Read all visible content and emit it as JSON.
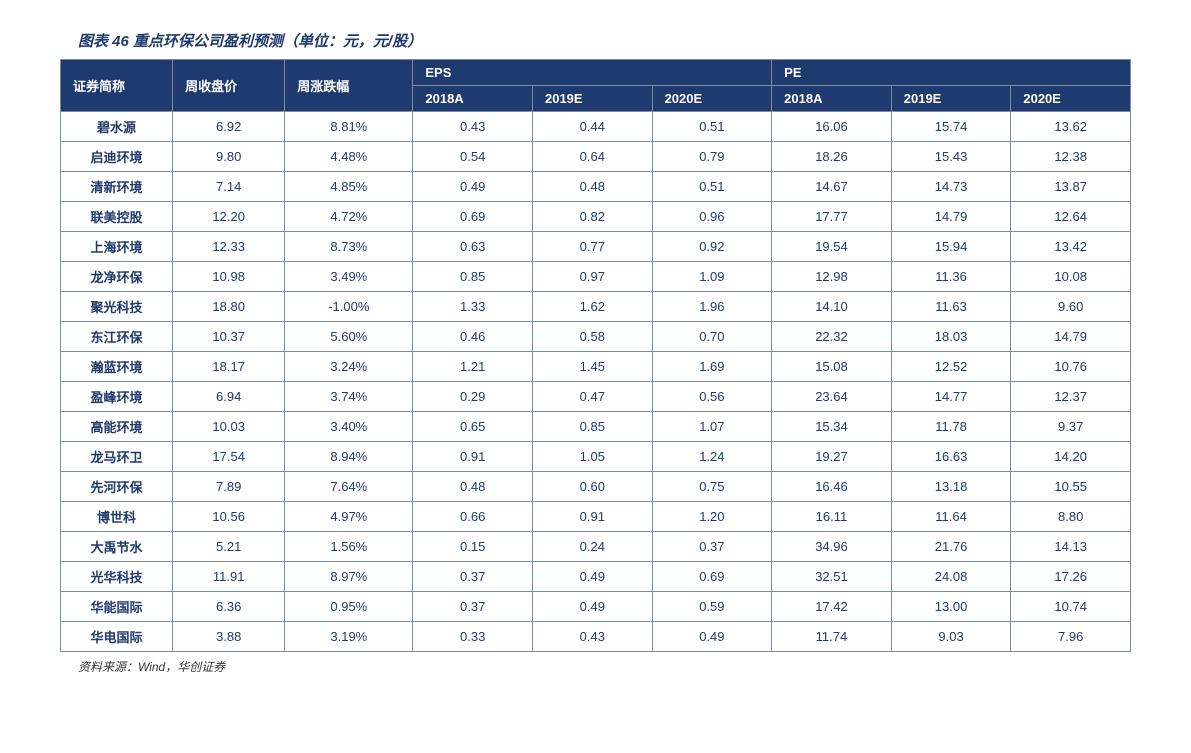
{
  "figure": {
    "caption": "图表 46  重点环保公司盈利预测（单位：元，元/股）",
    "source": "资料来源：Wind，华创证券"
  },
  "table": {
    "headers": {
      "stock_name": "证券简称",
      "close_price": "周收盘价",
      "change": "周涨跌幅",
      "eps_group": "EPS",
      "pe_group": "PE",
      "y2018a": "2018A",
      "y2019e": "2019E",
      "y2020e": "2020E"
    },
    "rows": [
      {
        "name": "碧水源",
        "price": "6.92",
        "change": "8.81%",
        "eps2018": "0.43",
        "eps2019": "0.44",
        "eps2020": "0.51",
        "pe2018": "16.06",
        "pe2019": "15.74",
        "pe2020": "13.62"
      },
      {
        "name": "启迪环境",
        "price": "9.80",
        "change": "4.48%",
        "eps2018": "0.54",
        "eps2019": "0.64",
        "eps2020": "0.79",
        "pe2018": "18.26",
        "pe2019": "15.43",
        "pe2020": "12.38"
      },
      {
        "name": "清新环境",
        "price": "7.14",
        "change": "4.85%",
        "eps2018": "0.49",
        "eps2019": "0.48",
        "eps2020": "0.51",
        "pe2018": "14.67",
        "pe2019": "14.73",
        "pe2020": "13.87"
      },
      {
        "name": "联美控股",
        "price": "12.20",
        "change": "4.72%",
        "eps2018": "0.69",
        "eps2019": "0.82",
        "eps2020": "0.96",
        "pe2018": "17.77",
        "pe2019": "14.79",
        "pe2020": "12.64"
      },
      {
        "name": "上海环境",
        "price": "12.33",
        "change": "8.73%",
        "eps2018": "0.63",
        "eps2019": "0.77",
        "eps2020": "0.92",
        "pe2018": "19.54",
        "pe2019": "15.94",
        "pe2020": "13.42"
      },
      {
        "name": "龙净环保",
        "price": "10.98",
        "change": "3.49%",
        "eps2018": "0.85",
        "eps2019": "0.97",
        "eps2020": "1.09",
        "pe2018": "12.98",
        "pe2019": "11.36",
        "pe2020": "10.08"
      },
      {
        "name": "聚光科技",
        "price": "18.80",
        "change": "-1.00%",
        "eps2018": "1.33",
        "eps2019": "1.62",
        "eps2020": "1.96",
        "pe2018": "14.10",
        "pe2019": "11.63",
        "pe2020": "9.60"
      },
      {
        "name": "东江环保",
        "price": "10.37",
        "change": "5.60%",
        "eps2018": "0.46",
        "eps2019": "0.58",
        "eps2020": "0.70",
        "pe2018": "22.32",
        "pe2019": "18.03",
        "pe2020": "14.79"
      },
      {
        "name": "瀚蓝环境",
        "price": "18.17",
        "change": "3.24%",
        "eps2018": "1.21",
        "eps2019": "1.45",
        "eps2020": "1.69",
        "pe2018": "15.08",
        "pe2019": "12.52",
        "pe2020": "10.76"
      },
      {
        "name": "盈峰环境",
        "price": "6.94",
        "change": "3.74%",
        "eps2018": "0.29",
        "eps2019": "0.47",
        "eps2020": "0.56",
        "pe2018": "23.64",
        "pe2019": "14.77",
        "pe2020": "12.37"
      },
      {
        "name": "高能环境",
        "price": "10.03",
        "change": "3.40%",
        "eps2018": "0.65",
        "eps2019": "0.85",
        "eps2020": "1.07",
        "pe2018": "15.34",
        "pe2019": "11.78",
        "pe2020": "9.37"
      },
      {
        "name": "龙马环卫",
        "price": "17.54",
        "change": "8.94%",
        "eps2018": "0.91",
        "eps2019": "1.05",
        "eps2020": "1.24",
        "pe2018": "19.27",
        "pe2019": "16.63",
        "pe2020": "14.20"
      },
      {
        "name": "先河环保",
        "price": "7.89",
        "change": "7.64%",
        "eps2018": "0.48",
        "eps2019": "0.60",
        "eps2020": "0.75",
        "pe2018": "16.46",
        "pe2019": "13.18",
        "pe2020": "10.55"
      },
      {
        "name": "博世科",
        "price": "10.56",
        "change": "4.97%",
        "eps2018": "0.66",
        "eps2019": "0.91",
        "eps2020": "1.20",
        "pe2018": "16.11",
        "pe2019": "11.64",
        "pe2020": "8.80"
      },
      {
        "name": "大禹节水",
        "price": "5.21",
        "change": "1.56%",
        "eps2018": "0.15",
        "eps2019": "0.24",
        "eps2020": "0.37",
        "pe2018": "34.96",
        "pe2019": "21.76",
        "pe2020": "14.13"
      },
      {
        "name": "光华科技",
        "price": "11.91",
        "change": "8.97%",
        "eps2018": "0.37",
        "eps2019": "0.49",
        "eps2020": "0.69",
        "pe2018": "32.51",
        "pe2019": "24.08",
        "pe2020": "17.26"
      },
      {
        "name": "华能国际",
        "price": "6.36",
        "change": "0.95%",
        "eps2018": "0.37",
        "eps2019": "0.49",
        "eps2020": "0.59",
        "pe2018": "17.42",
        "pe2019": "13.00",
        "pe2020": "10.74"
      },
      {
        "name": "华电国际",
        "price": "3.88",
        "change": "3.19%",
        "eps2018": "0.33",
        "eps2019": "0.43",
        "eps2020": "0.49",
        "pe2018": "11.74",
        "pe2019": "9.03",
        "pe2020": "7.96"
      }
    ]
  }
}
